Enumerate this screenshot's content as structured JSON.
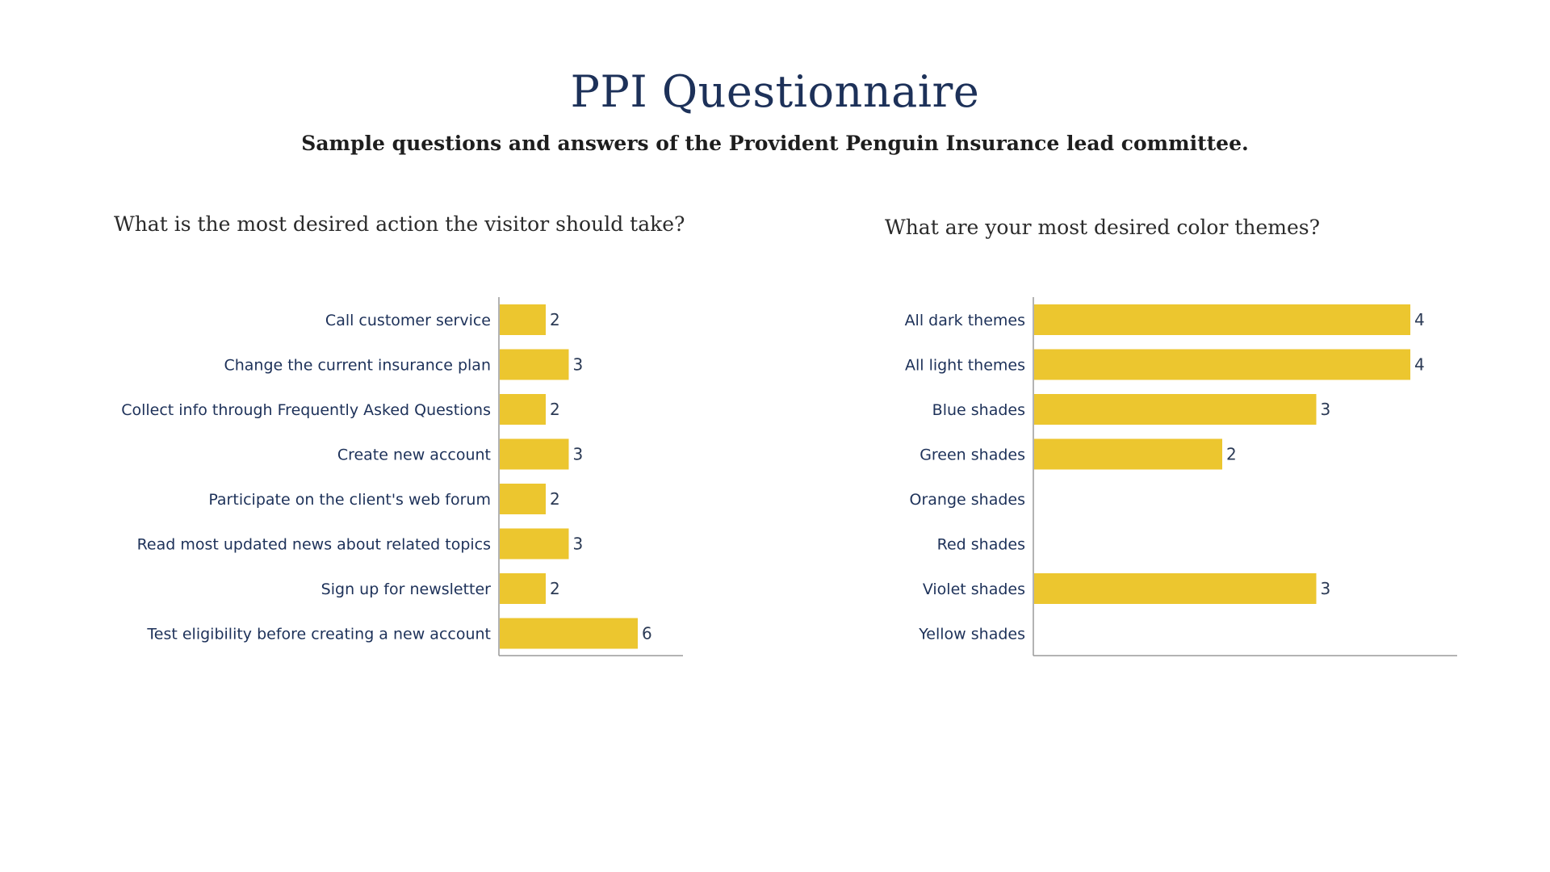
{
  "header": {
    "title": "PPI Questionnaire",
    "subtitle": "Sample questions and answers of the Provident Penguin Insurance lead committee."
  },
  "colors": {
    "bar": "#ecc62f",
    "title": "#1d3159",
    "axis": "#9a9a9a"
  },
  "chart_data": [
    {
      "type": "bar",
      "orientation": "horizontal",
      "title": "What is the most desired action the visitor should take?",
      "categories": [
        "Call customer service",
        "Change the current insurance plan",
        "Collect info through Frequently Asked Questions",
        "Create new account",
        "Participate on the client's web forum",
        "Read most updated news about related topics",
        "Sign up for newsletter",
        "Test eligibility before creating a new account"
      ],
      "values": [
        2,
        3,
        2,
        3,
        2,
        3,
        2,
        6
      ],
      "xlim": [
        0,
        8
      ],
      "grid": false,
      "data_labels": true
    },
    {
      "type": "bar",
      "orientation": "horizontal",
      "title": "What are your most desired color themes?",
      "categories": [
        "All dark themes",
        "All light themes",
        "Blue shades",
        "Green shades",
        "Orange shades",
        "Red shades",
        "Violet shades",
        "Yellow shades"
      ],
      "values": [
        4,
        4,
        3,
        2,
        0,
        0,
        3,
        0
      ],
      "xlim": [
        0,
        4.5
      ],
      "grid": false,
      "data_labels": true
    }
  ]
}
